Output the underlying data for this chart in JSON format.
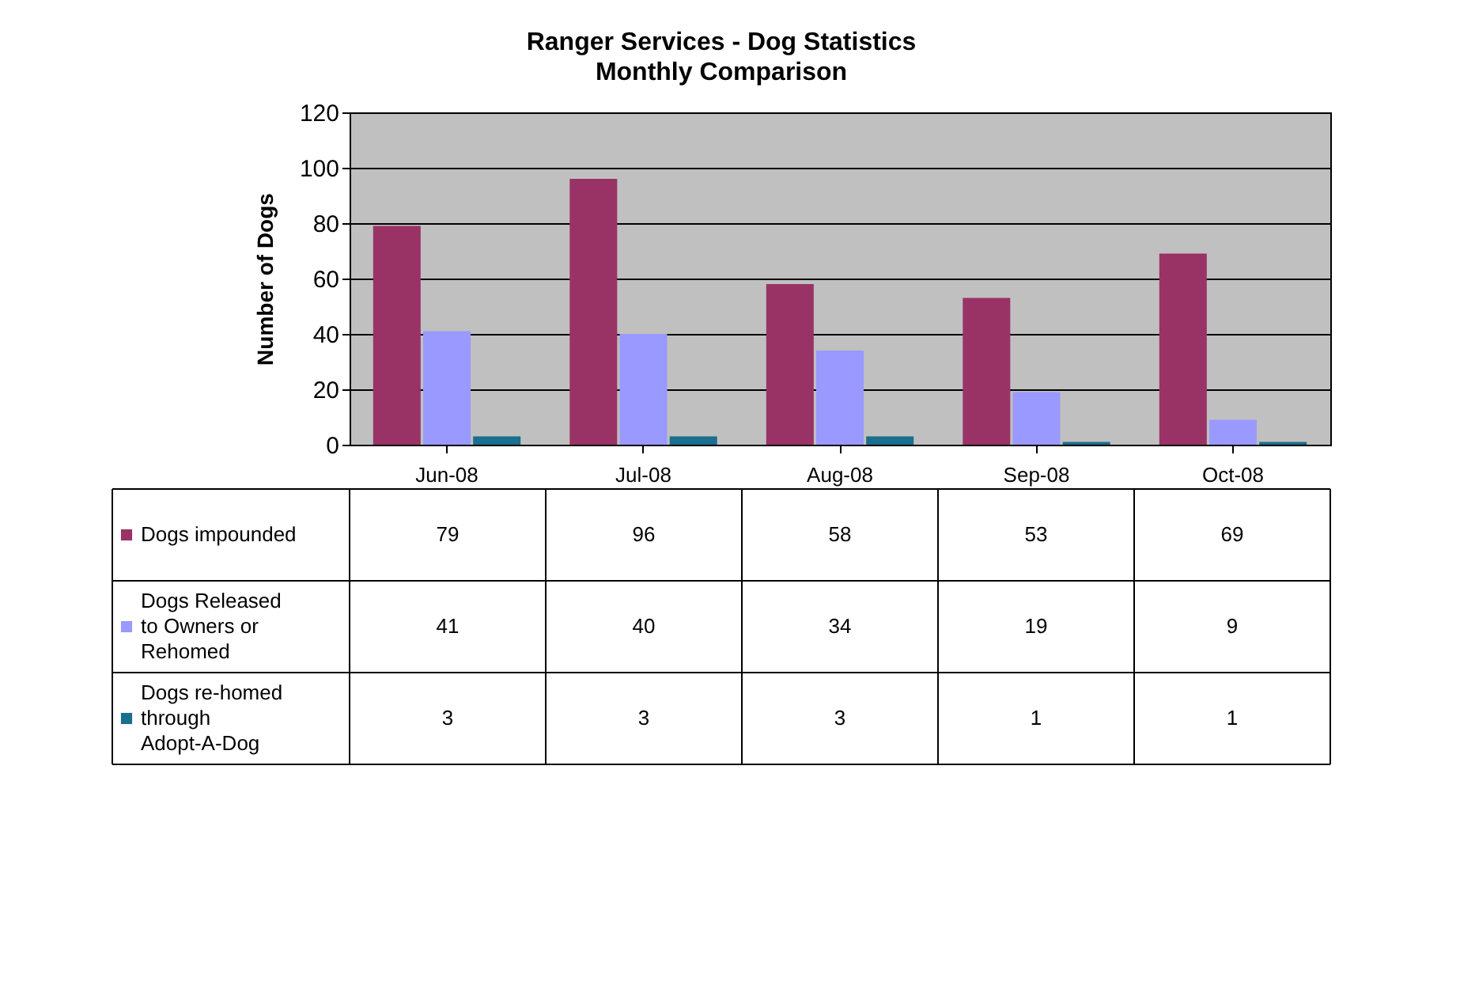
{
  "chart_data": {
    "type": "bar",
    "title": "Ranger Services - Dog Statistics",
    "subtitle": "Monthly Comparison",
    "ylabel": "Number of Dogs",
    "categories": [
      "Jun-08",
      "Jul-08",
      "Aug-08",
      "Sep-08",
      "Oct-08"
    ],
    "series": [
      {
        "name": "Dogs impounded",
        "color": "#993366",
        "values": [
          79,
          96,
          58,
          53,
          69
        ]
      },
      {
        "name": "Dogs Released to Owners or Rehomed",
        "color": "#9999ff",
        "values": [
          41,
          40,
          34,
          19,
          9
        ]
      },
      {
        "name": "Dogs re-homed through Adopt-A-Dog",
        "color": "#1a6e8e",
        "values": [
          3,
          3,
          3,
          1,
          1
        ]
      }
    ],
    "ylim": [
      0,
      120
    ],
    "yticks": [
      0,
      20,
      40,
      60,
      80,
      100,
      120
    ],
    "grid": "y",
    "legend": "bottom",
    "data_labels": true
  }
}
